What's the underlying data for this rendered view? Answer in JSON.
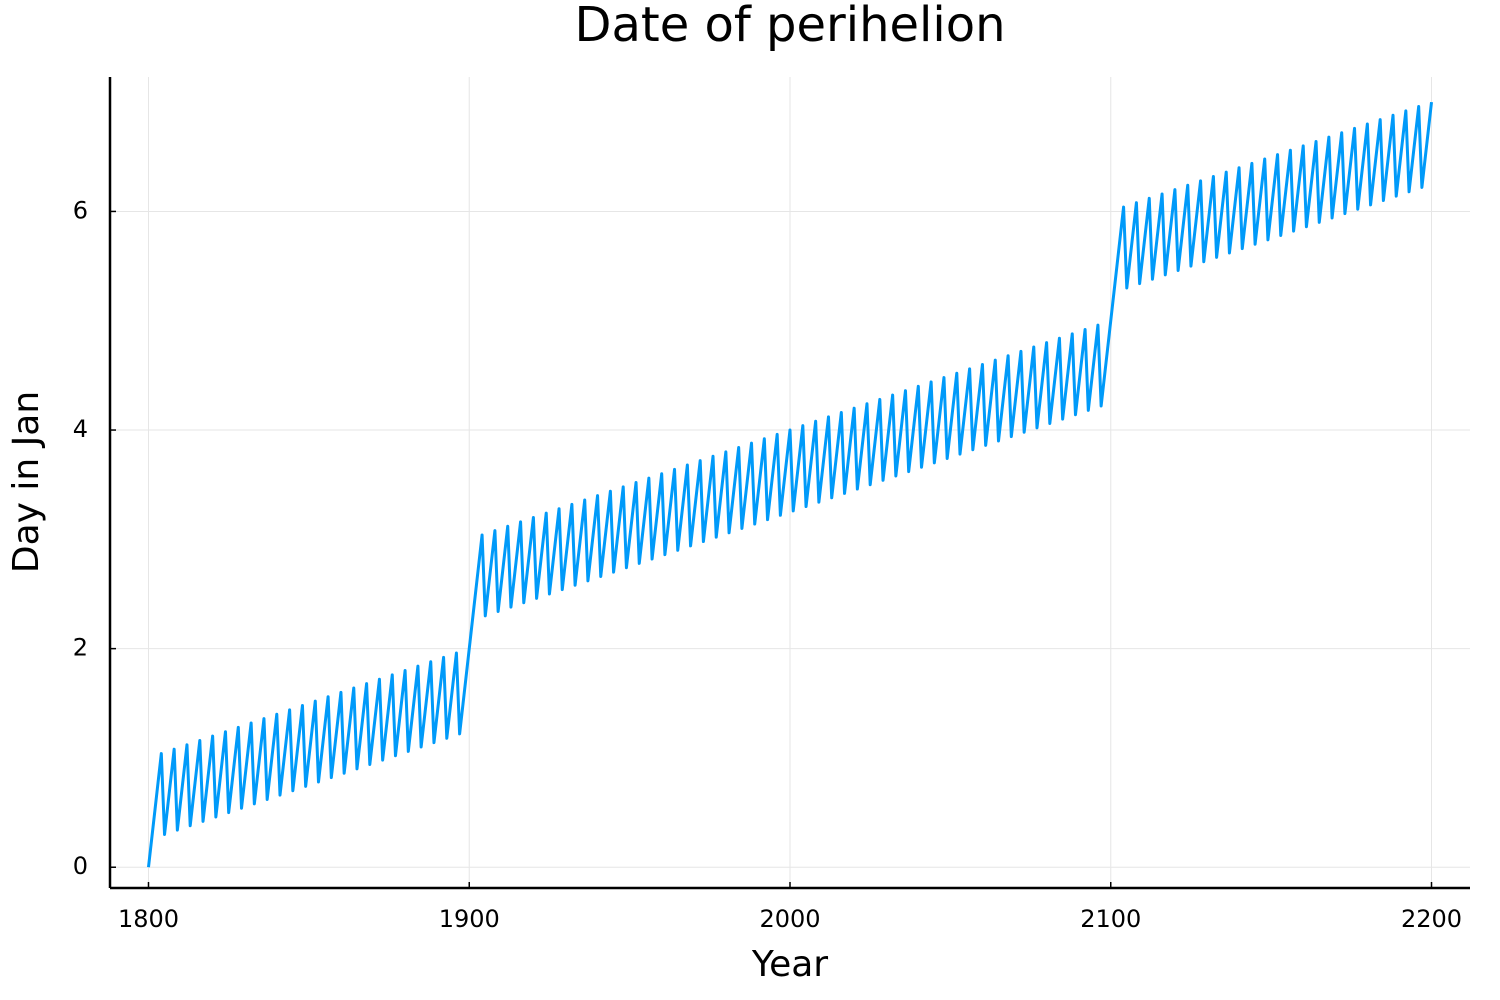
{
  "chart_data": {
    "type": "line",
    "title": "Date of perihelion",
    "xlabel": "Year",
    "ylabel": "Day in Jan",
    "color": "#009af9",
    "grid": true,
    "xlim": [
      1788,
      2212
    ],
    "ylim": [
      -0.19,
      7.23
    ],
    "xticks": [
      1800,
      1900,
      2000,
      2100,
      2200
    ],
    "yticks": [
      0,
      2,
      4,
      6
    ],
    "x": [
      1800,
      1801,
      1802,
      1803,
      1804,
      1805,
      1806,
      1807,
      1808,
      1809,
      1810,
      1811,
      1812,
      1813,
      1814,
      1815,
      1816,
      1817,
      1818,
      1819,
      1820,
      1821,
      1822,
      1823,
      1824,
      1825,
      1826,
      1827,
      1828,
      1829,
      1830,
      1831,
      1832,
      1833,
      1834,
      1835,
      1836,
      1837,
      1838,
      1839,
      1840,
      1841,
      1842,
      1843,
      1844,
      1845,
      1846,
      1847,
      1848,
      1849,
      1850,
      1851,
      1852,
      1853,
      1854,
      1855,
      1856,
      1857,
      1858,
      1859,
      1860,
      1861,
      1862,
      1863,
      1864,
      1865,
      1866,
      1867,
      1868,
      1869,
      1870,
      1871,
      1872,
      1873,
      1874,
      1875,
      1876,
      1877,
      1878,
      1879,
      1880,
      1881,
      1882,
      1883,
      1884,
      1885,
      1886,
      1887,
      1888,
      1889,
      1890,
      1891,
      1892,
      1893,
      1894,
      1895,
      1896,
      1897,
      1898,
      1899,
      1900,
      1901,
      1902,
      1903,
      1904,
      1905,
      1906,
      1907,
      1908,
      1909,
      1910,
      1911,
      1912,
      1913,
      1914,
      1915,
      1916,
      1917,
      1918,
      1919,
      1920,
      1921,
      1922,
      1923,
      1924,
      1925,
      1926,
      1927,
      1928,
      1929,
      1930,
      1931,
      1932,
      1933,
      1934,
      1935,
      1936,
      1937,
      1938,
      1939,
      1940,
      1941,
      1942,
      1943,
      1944,
      1945,
      1946,
      1947,
      1948,
      1949,
      1950,
      1951,
      1952,
      1953,
      1954,
      1955,
      1956,
      1957,
      1958,
      1959,
      1960,
      1961,
      1962,
      1963,
      1964,
      1965,
      1966,
      1967,
      1968,
      1969,
      1970,
      1971,
      1972,
      1973,
      1974,
      1975,
      1976,
      1977,
      1978,
      1979,
      1980,
      1981,
      1982,
      1983,
      1984,
      1985,
      1986,
      1987,
      1988,
      1989,
      1990,
      1991,
      1992,
      1993,
      1994,
      1995,
      1996,
      1997,
      1998,
      1999,
      2000,
      2001,
      2002,
      2003,
      2004,
      2005,
      2006,
      2007,
      2008,
      2009,
      2010,
      2011,
      2012,
      2013,
      2014,
      2015,
      2016,
      2017,
      2018,
      2019,
      2020,
      2021,
      2022,
      2023,
      2024,
      2025,
      2026,
      2027,
      2028,
      2029,
      2030,
      2031,
      2032,
      2033,
      2034,
      2035,
      2036,
      2037,
      2038,
      2039,
      2040,
      2041,
      2042,
      2043,
      2044,
      2045,
      2046,
      2047,
      2048,
      2049,
      2050,
      2051,
      2052,
      2053,
      2054,
      2055,
      2056,
      2057,
      2058,
      2059,
      2060,
      2061,
      2062,
      2063,
      2064,
      2065,
      2066,
      2067,
      2068,
      2069,
      2070,
      2071,
      2072,
      2073,
      2074,
      2075,
      2076,
      2077,
      2078,
      2079,
      2080,
      2081,
      2082,
      2083,
      2084,
      2085,
      2086,
      2087,
      2088,
      2089,
      2090,
      2091,
      2092,
      2093,
      2094,
      2095,
      2096,
      2097,
      2098,
      2099,
      2100,
      2101,
      2102,
      2103,
      2104,
      2105,
      2106,
      2107,
      2108,
      2109,
      2110,
      2111,
      2112,
      2113,
      2114,
      2115,
      2116,
      2117,
      2118,
      2119,
      2120,
      2121,
      2122,
      2123,
      2124,
      2125,
      2126,
      2127,
      2128,
      2129,
      2130,
      2131,
      2132,
      2133,
      2134,
      2135,
      2136,
      2137,
      2138,
      2139,
      2140,
      2141,
      2142,
      2143,
      2144,
      2145,
      2146,
      2147,
      2148,
      2149,
      2150,
      2151,
      2152,
      2153,
      2154,
      2155,
      2156,
      2157,
      2158,
      2159,
      2160,
      2161,
      2162,
      2163,
      2164,
      2165,
      2166,
      2167,
      2168,
      2169,
      2170,
      2171,
      2172,
      2173,
      2174,
      2175,
      2176,
      2177,
      2178,
      2179,
      2180,
      2181,
      2182,
      2183,
      2184,
      2185,
      2186,
      2187,
      2188,
      2189,
      2190,
      2191,
      2192,
      2193,
      2194,
      2195,
      2196,
      2197,
      2198,
      2199,
      2200
    ],
    "values": [
      0,
      0.26,
      0.52,
      0.78,
      1.04,
      0.3,
      0.56,
      0.82,
      1.08,
      0.34,
      0.6,
      0.86,
      1.12,
      0.38,
      0.64,
      0.9,
      1.16,
      0.42,
      0.68,
      0.94,
      1.2,
      0.46,
      0.72,
      0.98,
      1.24,
      0.5,
      0.76,
      1.02,
      1.28,
      0.54,
      0.8,
      1.06,
      1.32,
      0.58,
      0.84,
      1.1,
      1.36,
      0.62,
      0.88,
      1.14,
      1.4,
      0.66,
      0.92,
      1.18,
      1.44,
      0.7,
      0.96,
      1.22,
      1.48,
      0.74,
      1,
      1.26,
      1.52,
      0.78,
      1.04,
      1.3,
      1.56,
      0.82,
      1.08,
      1.34,
      1.6,
      0.86,
      1.12,
      1.38,
      1.64,
      0.9,
      1.16,
      1.42,
      1.68,
      0.94,
      1.2,
      1.46,
      1.72,
      0.98,
      1.24,
      1.5,
      1.76,
      1.02,
      1.28,
      1.54,
      1.8,
      1.06,
      1.32,
      1.58,
      1.84,
      1.1,
      1.36,
      1.62,
      1.88,
      1.14,
      1.4,
      1.66,
      1.92,
      1.18,
      1.44,
      1.7,
      1.96,
      1.22,
      1.48,
      1.74,
      2,
      2.26,
      2.52,
      2.78,
      3.04,
      2.3,
      2.56,
      2.82,
      3.08,
      2.34,
      2.6,
      2.86,
      3.12,
      2.38,
      2.64,
      2.9,
      3.16,
      2.42,
      2.68,
      2.94,
      3.2,
      2.46,
      2.72,
      2.98,
      3.24,
      2.5,
      2.76,
      3.02,
      3.28,
      2.54,
      2.8,
      3.06,
      3.32,
      2.58,
      2.84,
      3.1,
      3.36,
      2.62,
      2.88,
      3.14,
      3.4,
      2.66,
      2.92,
      3.18,
      3.44,
      2.7,
      2.96,
      3.22,
      3.48,
      2.74,
      3,
      3.26,
      3.52,
      2.78,
      3.04,
      3.3,
      3.56,
      2.82,
      3.08,
      3.34,
      3.6,
      2.86,
      3.12,
      3.38,
      3.64,
      2.9,
      3.16,
      3.42,
      3.68,
      2.94,
      3.2,
      3.46,
      3.72,
      2.98,
      3.24,
      3.5,
      3.76,
      3.02,
      3.28,
      3.54,
      3.8,
      3.06,
      3.32,
      3.58,
      3.84,
      3.1,
      3.36,
      3.62,
      3.88,
      3.14,
      3.4,
      3.66,
      3.92,
      3.18,
      3.44,
      3.7,
      3.96,
      3.22,
      3.48,
      3.74,
      4,
      3.26,
      3.52,
      3.78,
      4.04,
      3.3,
      3.56,
      3.82,
      4.08,
      3.34,
      3.6,
      3.86,
      4.12,
      3.38,
      3.64,
      3.9,
      4.16,
      3.42,
      3.68,
      3.94,
      4.2,
      3.46,
      3.72,
      3.98,
      4.24,
      3.5,
      3.76,
      4.02,
      4.28,
      3.54,
      3.8,
      4.06,
      4.32,
      3.58,
      3.84,
      4.1,
      4.36,
      3.62,
      3.88,
      4.14,
      4.4,
      3.66,
      3.92,
      4.18,
      4.44,
      3.7,
      3.96,
      4.22,
      4.48,
      3.74,
      4,
      4.26,
      4.52,
      3.78,
      4.04,
      4.3,
      4.56,
      3.82,
      4.08,
      4.34,
      4.6,
      3.86,
      4.12,
      4.38,
      4.64,
      3.9,
      4.16,
      4.42,
      4.68,
      3.94,
      4.2,
      4.46,
      4.72,
      3.98,
      4.24,
      4.5,
      4.76,
      4.02,
      4.28,
      4.54,
      4.8,
      4.06,
      4.32,
      4.58,
      4.84,
      4.1,
      4.36,
      4.62,
      4.88,
      4.14,
      4.4,
      4.66,
      4.92,
      4.18,
      4.44,
      4.7,
      4.96,
      4.22,
      4.48,
      4.74,
      5,
      5.26,
      5.52,
      5.78,
      6.04,
      5.3,
      5.56,
      5.82,
      6.08,
      5.34,
      5.6,
      5.86,
      6.12,
      5.38,
      5.64,
      5.9,
      6.16,
      5.42,
      5.68,
      5.94,
      6.2,
      5.46,
      5.72,
      5.98,
      6.24,
      5.5,
      5.76,
      6.02,
      6.28,
      5.54,
      5.8,
      6.06,
      6.32,
      5.58,
      5.84,
      6.1,
      6.36,
      5.62,
      5.88,
      6.14,
      6.4,
      5.66,
      5.92,
      6.18,
      6.44,
      5.7,
      5.96,
      6.22,
      6.48,
      5.74,
      6,
      6.26,
      6.52,
      5.78,
      6.04,
      6.3,
      6.56,
      5.82,
      6.08,
      6.34,
      6.6,
      5.86,
      6.12,
      6.38,
      6.64,
      5.9,
      6.16,
      6.42,
      6.68,
      5.94,
      6.2,
      6.46,
      6.72,
      5.98,
      6.24,
      6.5,
      6.76,
      6.02,
      6.28,
      6.54,
      6.8,
      6.06,
      6.32,
      6.58,
      6.84,
      6.1,
      6.36,
      6.62,
      6.88,
      6.14,
      6.4,
      6.66,
      6.92,
      6.18,
      6.44,
      6.7,
      6.96,
      6.22,
      6.48,
      6.74,
      7
    ]
  }
}
